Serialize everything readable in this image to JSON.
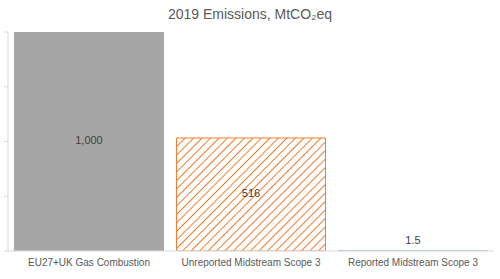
{
  "chart_data": {
    "type": "bar",
    "title": "2019 Emissions, MtCO₂eq",
    "categories": [
      "EU27+UK Gas Combustion",
      "Unreported Midstream Scope 3",
      "Reported Midstream Scope 3"
    ],
    "values": [
      1000,
      516,
      1.5
    ],
    "value_labels": [
      "1,000",
      "516",
      "1.5"
    ],
    "colors": [
      "#a6a6a6",
      "#ed7d31",
      "#9dc3e6"
    ],
    "ylim": [
      0,
      1000
    ],
    "yticks": [
      0,
      250,
      500,
      750,
      1000
    ],
    "grid": false,
    "tick_labels": "x",
    "data_labels": true
  }
}
